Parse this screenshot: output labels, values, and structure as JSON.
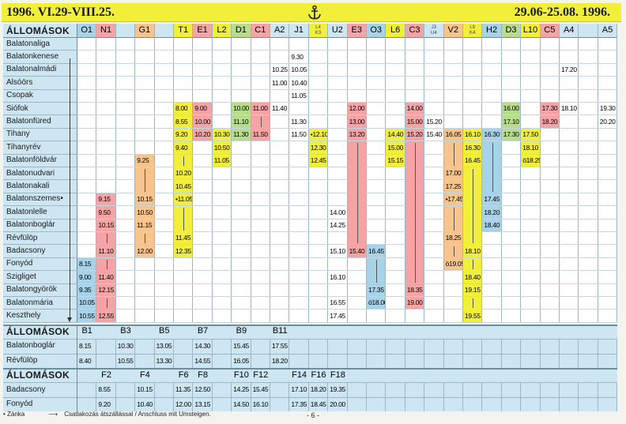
{
  "header": {
    "left": "1996. VI.29-VIII.25.",
    "right": "29.06-25.08. 1996."
  },
  "colors": {
    "yellow": "#f2ef3a",
    "green": "#b7dc8a",
    "pink": "#f6a3a5",
    "orange": "#f7c48e",
    "blue": "#a8d2e8",
    "main_bg": "#ffffff",
    "section_bg": "#cde6f1"
  },
  "section1": {
    "heading": "ÁLLOMÁSOK",
    "columns": [
      {
        "label": "O1",
        "color": "blue"
      },
      {
        "label": "N1",
        "color": "pink"
      },
      {
        "label": "",
        "color": ""
      },
      {
        "label": "G1",
        "color": "orange"
      },
      {
        "label": "",
        "color": ""
      },
      {
        "label": "T1",
        "color": "yellow"
      },
      {
        "label": "E1",
        "color": "pink"
      },
      {
        "label": "L2",
        "color": "yellow"
      },
      {
        "label": "D1",
        "color": "green"
      },
      {
        "label": "C1",
        "color": "pink"
      },
      {
        "label": "A2",
        "color": ""
      },
      {
        "label": "J1",
        "color": ""
      },
      {
        "label": "",
        "color": "yellow",
        "sub": [
          "L4",
          "K3"
        ]
      },
      {
        "label": "U2",
        "color": ""
      },
      {
        "label": "E3",
        "color": "pink"
      },
      {
        "label": "O3",
        "color": "blue"
      },
      {
        "label": "L6",
        "color": "yellow"
      },
      {
        "label": "C3",
        "color": "pink"
      },
      {
        "label": "",
        "color": "",
        "sub": [
          "J3",
          "U4"
        ]
      },
      {
        "label": "V2",
        "color": "orange"
      },
      {
        "label": "",
        "color": "yellow",
        "sub": [
          "L9",
          "K4"
        ]
      },
      {
        "label": "H2",
        "color": "blue"
      },
      {
        "label": "D3",
        "color": "green"
      },
      {
        "label": "L10",
        "color": "yellow"
      },
      {
        "label": "C5",
        "color": "pink"
      },
      {
        "label": "A4",
        "color": ""
      },
      {
        "label": "",
        "color": ""
      },
      {
        "label": "A5",
        "color": ""
      }
    ],
    "stations": [
      "Balatonaliga",
      "Balatonkenese",
      "Balatonalmádi",
      "Alsóörs",
      "Csopak",
      "Siófok",
      "Balatonfüred",
      "Tihany",
      "Tihanyrév",
      "Balatonföldvár",
      "Balatonudvari",
      "Balatonakali",
      "Balatonszemes•",
      "Balatonlelle",
      "Balatonboglár",
      "Révfülöp",
      "Badacsony",
      "Fonyód",
      "Szigliget",
      "Balatongyörök",
      "Balatonmária",
      "Keszthely"
    ],
    "times": [
      [
        0,
        "8.15",
        17
      ],
      [
        0,
        "9.00",
        18
      ],
      [
        0,
        "9.35",
        19
      ],
      [
        0,
        "10.05",
        20
      ],
      [
        0,
        "10.55",
        21
      ],
      [
        1,
        "9.15",
        12
      ],
      [
        1,
        "9.50",
        13
      ],
      [
        1,
        "10.15",
        14
      ],
      [
        1,
        "11.10",
        16
      ],
      [
        1,
        "11.40",
        18
      ],
      [
        1,
        "12.15",
        19
      ],
      [
        1,
        "12.55",
        21
      ],
      [
        3,
        "9.25",
        9
      ],
      [
        3,
        "10.15",
        12
      ],
      [
        3,
        "10.50",
        13
      ],
      [
        3,
        "11.15",
        14
      ],
      [
        3,
        "12.00",
        16
      ],
      [
        5,
        "8.00",
        5
      ],
      [
        5,
        "8.55",
        6
      ],
      [
        5,
        "9.20",
        7
      ],
      [
        5,
        "9.40",
        8
      ],
      [
        5,
        "10.20",
        10
      ],
      [
        5,
        "10.45",
        11
      ],
      [
        5,
        "•11.05",
        12
      ],
      [
        5,
        "11.45",
        15
      ],
      [
        5,
        "12.35",
        16
      ],
      [
        6,
        "9.00",
        5
      ],
      [
        6,
        "10.00",
        6
      ],
      [
        6,
        "10.20",
        7
      ],
      [
        7,
        "10.30",
        7
      ],
      [
        7,
        "10.50",
        8
      ],
      [
        7,
        "11.05",
        9
      ],
      [
        8,
        "10.00",
        5
      ],
      [
        8,
        "11.10",
        6
      ],
      [
        8,
        "11.30",
        7
      ],
      [
        9,
        "11.00",
        5
      ],
      [
        9,
        "11.50",
        7
      ],
      [
        10,
        "10.25",
        2
      ],
      [
        10,
        "11.00",
        3
      ],
      [
        10,
        "11.40",
        5
      ],
      [
        11,
        "9.30",
        1
      ],
      [
        11,
        "10.05",
        2
      ],
      [
        11,
        "10.40",
        3
      ],
      [
        11,
        "11.05",
        4
      ],
      [
        11,
        "11.30",
        6
      ],
      [
        11,
        "11.50",
        7
      ],
      [
        12,
        "•12.10",
        7
      ],
      [
        12,
        "12.30",
        8
      ],
      [
        12,
        "12.45",
        9
      ],
      [
        13,
        "14.00",
        13
      ],
      [
        13,
        "14.25",
        14
      ],
      [
        13,
        "15.10",
        16
      ],
      [
        13,
        "16.10",
        18
      ],
      [
        13,
        "16.55",
        20
      ],
      [
        13,
        "17.45",
        21
      ],
      [
        14,
        "12.00",
        5
      ],
      [
        14,
        "13.00",
        6
      ],
      [
        14,
        "13.20",
        7
      ],
      [
        14,
        "15.40",
        16
      ],
      [
        15,
        "16.45",
        16
      ],
      [
        15,
        "17.35",
        19
      ],
      [
        15,
        "ö18.00",
        20
      ],
      [
        16,
        "14.40",
        7
      ],
      [
        16,
        "15.00",
        8
      ],
      [
        16,
        "15.15",
        9
      ],
      [
        17,
        "14.00",
        5
      ],
      [
        17,
        "15.00",
        6
      ],
      [
        17,
        "15.20",
        7
      ],
      [
        17,
        "18.35",
        19
      ],
      [
        17,
        "19.00",
        20
      ],
      [
        18,
        "15.20",
        6
      ],
      [
        18,
        "15.40",
        7
      ],
      [
        19,
        "16.05",
        7
      ],
      [
        19,
        "17.00",
        10
      ],
      [
        19,
        "17.25",
        11
      ],
      [
        19,
        "•17.45",
        12
      ],
      [
        19,
        "18.25",
        15
      ],
      [
        19,
        "ö19.05",
        17
      ],
      [
        20,
        "16.10",
        7
      ],
      [
        20,
        "16.30",
        8
      ],
      [
        20,
        "16.45",
        9
      ],
      [
        20,
        "18.10",
        16
      ],
      [
        20,
        "18.40",
        18
      ],
      [
        20,
        "19.15",
        19
      ],
      [
        20,
        "19.55",
        21
      ],
      [
        21,
        "16.30",
        7
      ],
      [
        21,
        "17.45",
        12
      ],
      [
        21,
        "18.20",
        13
      ],
      [
        21,
        "18.40",
        14
      ],
      [
        22,
        "16.00",
        5
      ],
      [
        22,
        "17.10",
        6
      ],
      [
        22,
        "17.30",
        7
      ],
      [
        23,
        "17.50",
        7
      ],
      [
        23,
        "18.10",
        8
      ],
      [
        23,
        "ö18.25",
        9
      ],
      [
        24,
        "17.30",
        5
      ],
      [
        24,
        "18.20",
        6
      ],
      [
        25,
        "17.20",
        2
      ],
      [
        25,
        "18.10",
        5
      ],
      [
        27,
        "19.30",
        5
      ],
      [
        27,
        "20.20",
        6
      ]
    ]
  },
  "section2": {
    "heading": "ÁLLOMÁSOK",
    "routes": [
      "B1",
      "B3",
      "B5",
      "B7",
      "B9",
      "B11"
    ],
    "rows": [
      {
        "station": "Balatonboglár",
        "times": [
          "8.15",
          "10.30",
          "13.05",
          "14.30",
          "15.45",
          "17.55"
        ]
      },
      {
        "station": "Révfülöp",
        "times": [
          "8.40",
          "10.55",
          "13.30",
          "14.55",
          "16.05",
          "18.20"
        ]
      }
    ]
  },
  "section3": {
    "heading": "ÁLLOMÁSOK",
    "routes": [
      "F2",
      "F4",
      "F6",
      "F8",
      "F10",
      "F12",
      "F14",
      "F16",
      "F18"
    ],
    "rows": [
      {
        "station": "Badacsony",
        "times": [
          "8.55",
          "10.15",
          "11.35",
          "12.50",
          "14.25",
          "15.45",
          "17.10",
          "18.20",
          "19.35"
        ]
      },
      {
        "station": "Fonyód",
        "times": [
          "9.20",
          "10.40",
          "12.00",
          "13.15",
          "14.50",
          "16.10",
          "17.35",
          "18.45",
          "20.00"
        ]
      }
    ]
  },
  "footer": {
    "legend_dot": "• Zánka",
    "legend_arrow": "Csatlakozás átszállással / Anschluss mit Umsteigen.",
    "page": "- 6 -"
  }
}
